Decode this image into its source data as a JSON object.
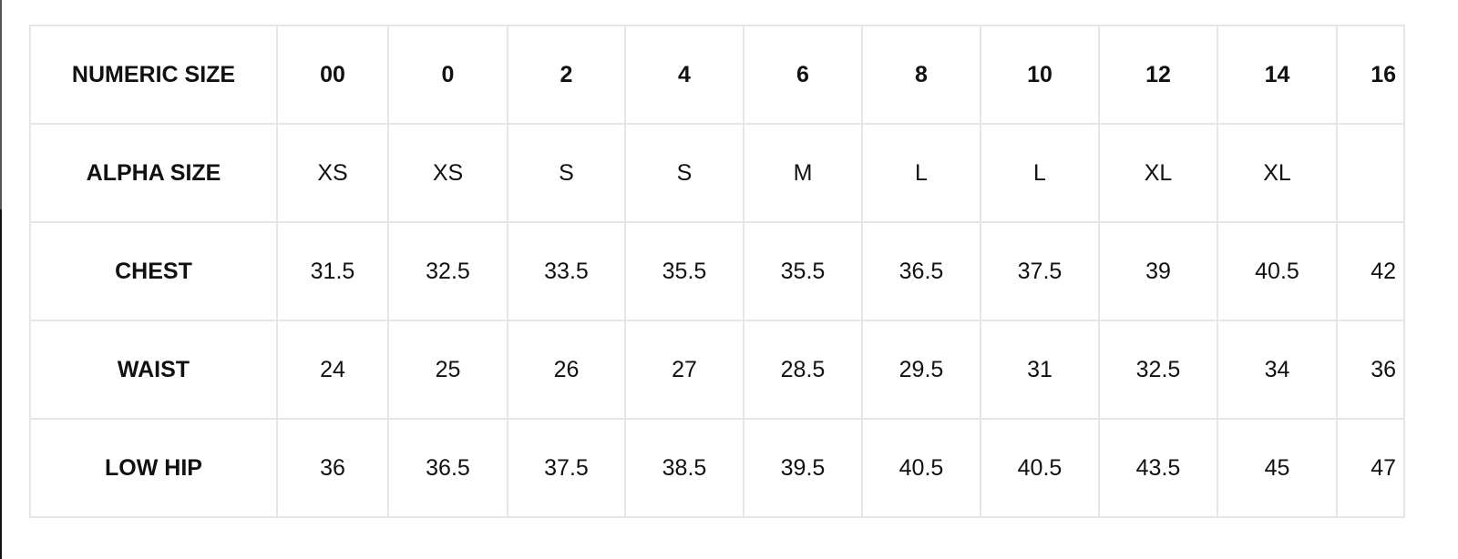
{
  "size_chart": {
    "rows": [
      {
        "label": "NUMERIC SIZE",
        "values": [
          "00",
          "0",
          "2",
          "4",
          "6",
          "8",
          "10",
          "12",
          "14",
          "16"
        ]
      },
      {
        "label": "ALPHA SIZE",
        "values": [
          "XS",
          "XS",
          "S",
          "S",
          "M",
          "L",
          "L",
          "XL",
          "XL",
          ""
        ]
      },
      {
        "label": "CHEST",
        "values": [
          "31.5",
          "32.5",
          "33.5",
          "35.5",
          "35.5",
          "36.5",
          "37.5",
          "39",
          "40.5",
          "42"
        ]
      },
      {
        "label": "WAIST",
        "values": [
          "24",
          "25",
          "26",
          "27",
          "28.5",
          "29.5",
          "31",
          "32.5",
          "34",
          "36"
        ]
      },
      {
        "label": "LOW HIP",
        "values": [
          "36",
          "36.5",
          "37.5",
          "38.5",
          "39.5",
          "40.5",
          "40.5",
          "43.5",
          "45",
          "47"
        ]
      }
    ]
  }
}
